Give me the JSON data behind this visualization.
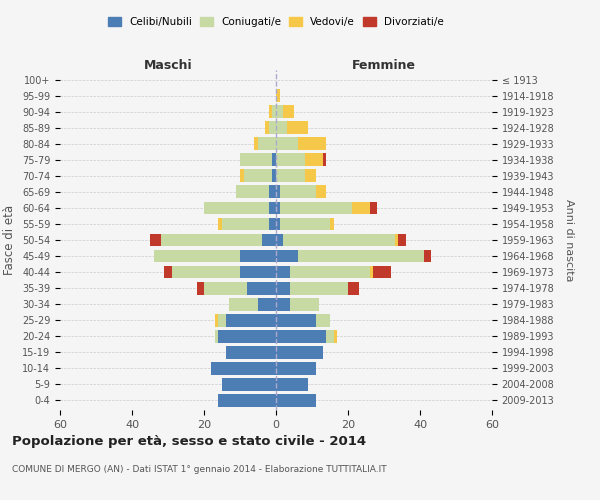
{
  "age_groups": [
    "0-4",
    "5-9",
    "10-14",
    "15-19",
    "20-24",
    "25-29",
    "30-34",
    "35-39",
    "40-44",
    "45-49",
    "50-54",
    "55-59",
    "60-64",
    "65-69",
    "70-74",
    "75-79",
    "80-84",
    "85-89",
    "90-94",
    "95-99",
    "100+"
  ],
  "birth_years": [
    "2009-2013",
    "2004-2008",
    "1999-2003",
    "1994-1998",
    "1989-1993",
    "1984-1988",
    "1979-1983",
    "1974-1978",
    "1969-1973",
    "1964-1968",
    "1959-1963",
    "1954-1958",
    "1949-1953",
    "1944-1948",
    "1939-1943",
    "1934-1938",
    "1929-1933",
    "1924-1928",
    "1919-1923",
    "1914-1918",
    "≤ 1913"
  ],
  "maschi": {
    "celibi": [
      16,
      15,
      18,
      14,
      16,
      14,
      5,
      8,
      10,
      10,
      4,
      2,
      2,
      2,
      1,
      1,
      0,
      0,
      0,
      0,
      0
    ],
    "coniugati": [
      0,
      0,
      0,
      0,
      1,
      2,
      8,
      12,
      19,
      24,
      28,
      13,
      18,
      9,
      8,
      9,
      5,
      2,
      1,
      0,
      0
    ],
    "vedovi": [
      0,
      0,
      0,
      0,
      0,
      1,
      0,
      0,
      0,
      0,
      0,
      1,
      0,
      0,
      1,
      0,
      1,
      1,
      1,
      0,
      0
    ],
    "divorziati": [
      0,
      0,
      0,
      0,
      0,
      0,
      0,
      2,
      2,
      0,
      3,
      0,
      0,
      0,
      0,
      0,
      0,
      0,
      0,
      0,
      0
    ]
  },
  "femmine": {
    "nubili": [
      11,
      9,
      11,
      13,
      14,
      11,
      4,
      4,
      4,
      6,
      2,
      1,
      1,
      1,
      0,
      0,
      0,
      0,
      0,
      0,
      0
    ],
    "coniugate": [
      0,
      0,
      0,
      0,
      2,
      4,
      8,
      16,
      22,
      35,
      31,
      14,
      20,
      10,
      8,
      8,
      6,
      3,
      2,
      0,
      0
    ],
    "vedove": [
      0,
      0,
      0,
      0,
      1,
      0,
      0,
      0,
      1,
      0,
      1,
      1,
      5,
      3,
      3,
      5,
      8,
      6,
      3,
      1,
      0
    ],
    "divorziate": [
      0,
      0,
      0,
      0,
      0,
      0,
      0,
      3,
      5,
      2,
      2,
      0,
      2,
      0,
      0,
      1,
      0,
      0,
      0,
      0,
      0
    ]
  },
  "colors": {
    "celibi": "#4d7db5",
    "coniugati": "#c8daa4",
    "vedovi": "#f5c84a",
    "divorziati": "#c0392b"
  },
  "title": "Popolazione per età, sesso e stato civile - 2014",
  "subtitle": "COMUNE DI MERGO (AN) - Dati ISTAT 1° gennaio 2014 - Elaborazione TUTTITALIA.IT",
  "ylabel_left": "Fasce di età",
  "ylabel_right": "Anni di nascita",
  "xlabel_maschi": "Maschi",
  "xlabel_femmine": "Femmine",
  "xlim": 60,
  "background_color": "#f5f5f5",
  "grid_color": "#cccccc"
}
